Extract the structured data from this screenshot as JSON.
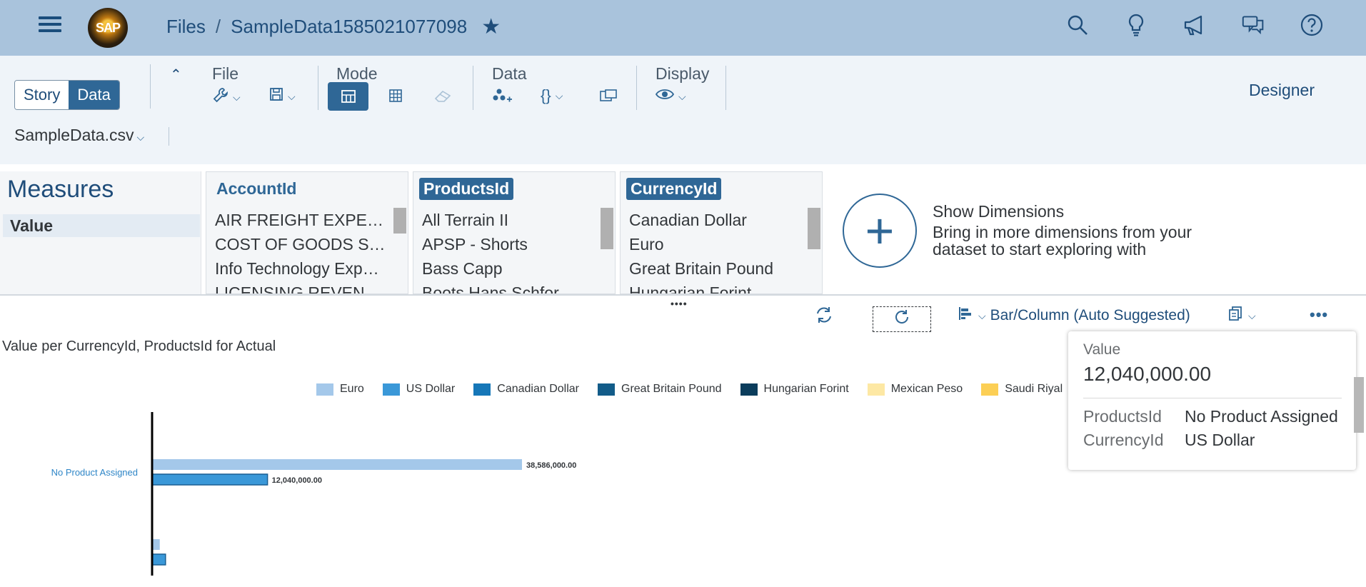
{
  "shell": {
    "logo_text": "SAP",
    "breadcrumb_root": "Files",
    "breadcrumb_sep": "/",
    "breadcrumb_current": "SampleData1585021077098"
  },
  "toolbar": {
    "story_label": "Story",
    "data_label": "Data",
    "file_group": "File",
    "mode_group": "Mode",
    "data_group": "Data",
    "display_group": "Display",
    "designer_label": "Designer",
    "dataset": "SampleData.csv"
  },
  "panels": {
    "measures_title": "Measures",
    "measure_value": "Value",
    "dimensions": [
      {
        "name": "AccountId",
        "selected": false,
        "items": [
          "AIR FREIGHT EXPEN…",
          "COST OF GOODS S…",
          "Info Technology Expe…",
          "LICENSING REVENUE"
        ]
      },
      {
        "name": "ProductsId",
        "selected": true,
        "items": [
          "All Terrain II",
          "APSP - Shorts",
          "Bass Capp",
          "Boots Hans Schfor"
        ]
      },
      {
        "name": "CurrencyId",
        "selected": true,
        "items": [
          "Canadian Dollar",
          "Euro",
          "Great Britain Pound",
          "Hungarian Forint"
        ]
      }
    ],
    "show_dimensions_title": "Show Dimensions",
    "show_dimensions_desc": "Bring in more dimensions from your dataset to start exploring with"
  },
  "chart_toolbar": {
    "chart_type_label": "Bar/Column (Auto Suggested)",
    "more_label": "•••"
  },
  "chart_data": {
    "type": "bar",
    "orientation": "horizontal",
    "title": "Value per CurrencyId, ProductsId for Actual",
    "categories": [
      "No Product Assigned",
      ""
    ],
    "series": [
      {
        "name": "Euro",
        "color": "#a4c8ea",
        "values": [
          38586000,
          800000
        ]
      },
      {
        "name": "US Dollar",
        "color": "#3a98d8",
        "values": [
          12040000,
          1400000
        ]
      },
      {
        "name": "Canadian Dollar",
        "color": "#1677b8",
        "values": [
          null,
          null
        ]
      },
      {
        "name": "Great Britain Pound",
        "color": "#125c89",
        "values": [
          null,
          null
        ]
      },
      {
        "name": "Hungarian Forint",
        "color": "#0b3d5c",
        "values": [
          null,
          null
        ]
      },
      {
        "name": "Mexican Peso",
        "color": "#fde8a4",
        "values": [
          null,
          null
        ]
      },
      {
        "name": "Saudi Riyal",
        "color": "#fccf55",
        "values": [
          null,
          null
        ]
      }
    ],
    "data_labels": [
      "38,586,000.00",
      "12,040,000.00",
      "",
      ""
    ],
    "legend_position": "top"
  },
  "tooltip": {
    "measure": "Value",
    "value": "12,040,000.00",
    "rows": [
      {
        "key": "ProductsId",
        "value": "No Product Assigned"
      },
      {
        "key": "CurrencyId",
        "value": "US Dollar"
      }
    ]
  }
}
